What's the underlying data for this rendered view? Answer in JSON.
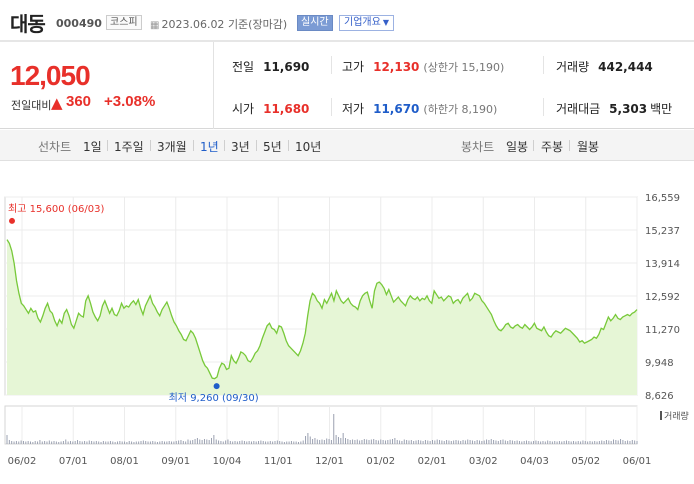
{
  "header": {
    "name": "대동",
    "code": "000490",
    "market": "코스피",
    "ref_date": "2023.06.02",
    "ref_label": "기준(장마감)",
    "realtime": "실시간",
    "company_info": "기업개요"
  },
  "quote": {
    "price": "12,050",
    "change_label": "전일대비",
    "change_arrow": "▲",
    "change_value": "360",
    "change_pct": "+3.08%",
    "prev_close_label": "전일",
    "prev_close": "11,690",
    "high_label": "고가",
    "high": "12,130",
    "upper_limit": "(상한가 15,190)",
    "volume_label": "거래량",
    "volume": "442,444",
    "open_label": "시가",
    "open": "11,680",
    "low_label": "저가",
    "low": "11,670",
    "lower_limit": "(하한가 8,190)",
    "amount_label": "거래대금",
    "amount": "5,303",
    "amount_unit": "백만"
  },
  "periods": {
    "line_title": "선차트",
    "line_items": [
      "1일",
      "1주일",
      "3개월",
      "1년",
      "3년",
      "5년",
      "10년"
    ],
    "active": "1년",
    "candle_title": "봉차트",
    "candle_items": [
      "일봉",
      "주봉",
      "월봉"
    ]
  },
  "colors": {
    "up": "#e8302a",
    "down": "#1f5dc9",
    "line": "#78c93a",
    "area": "#e6f6d6",
    "volume": "#9aa0b0"
  },
  "chart_data": {
    "type": "area",
    "y_ticks": [
      "16,559",
      "15,237",
      "13,914",
      "12,592",
      "11,270",
      "9,948",
      "8,626"
    ],
    "y_tick_values": [
      16559,
      15237,
      13914,
      12592,
      11270,
      9948,
      8626
    ],
    "ylim": [
      8626,
      16559
    ],
    "x_ticks": [
      "06/02",
      "07/01",
      "08/01",
      "09/01",
      "10/04",
      "11/01",
      "12/01",
      "01/02",
      "02/01",
      "03/02",
      "04/03",
      "05/02",
      "06/01"
    ],
    "high_annotation": "최고 15,600 (06/03)",
    "high_value": 15600,
    "low_annotation": "최저 9,260 (09/30)",
    "low_value": 9260,
    "volume_label": "거래량",
    "series": [
      {
        "values": [
          14850,
          14700,
          14400,
          13900,
          13200,
          12700,
          12300,
          12200,
          12050,
          11900,
          12100,
          11950,
          12000,
          11700,
          11550,
          11800,
          12100,
          12300,
          12000,
          11900,
          11600,
          11400,
          11650,
          11500,
          11900,
          12050,
          11800,
          11450,
          11300,
          11600,
          11900,
          11800,
          11750,
          12400,
          12600,
          12300,
          11950,
          11750,
          11600,
          11800,
          12200,
          12400,
          12150,
          11900,
          12100,
          11850,
          11800,
          12000,
          12300,
          12100,
          12200,
          12150,
          12300,
          12400,
          12250,
          12450,
          12100,
          11850,
          12200,
          12400,
          12600,
          12300,
          12150,
          11950,
          11800,
          12050,
          12200,
          12350,
          12100,
          11800,
          11550,
          11400,
          11200,
          11050,
          10850,
          10800,
          11000,
          11200,
          11100,
          10900,
          10600,
          10300,
          10000,
          9800,
          9700,
          9500,
          9300,
          9280,
          9350,
          9700,
          9900,
          9850,
          9650,
          9700,
          10200,
          10000,
          9900,
          10100,
          10350,
          10300,
          10200,
          10000,
          9950,
          10100,
          10300,
          10400,
          10600,
          10900,
          11150,
          11400,
          11500,
          11300,
          11250,
          11100,
          11400,
          11350,
          11100,
          10800,
          10600,
          10500,
          10400,
          10300,
          10200,
          10400,
          10700,
          11100,
          11800,
          12400,
          12700,
          12600,
          12400,
          12300,
          12100,
          12450,
          12300,
          12500,
          12700,
          12400,
          12800,
          12600,
          12400,
          12300,
          12400,
          12500,
          12300,
          12200,
          12150,
          12050,
          12400,
          12600,
          12700,
          12750,
          12400,
          12100,
          12800,
          13100,
          13150,
          13050,
          12900,
          12650,
          12850,
          12600,
          12350,
          12450,
          12550,
          12400,
          12300,
          12200,
          12450,
          12600,
          12500,
          12450,
          12550,
          12400,
          12500,
          12450,
          12600,
          12400,
          12300,
          12800,
          12650,
          12500,
          12550,
          12400,
          12500,
          12600,
          12550,
          12300,
          12400,
          12450,
          12300,
          12500,
          12600,
          12700,
          12400,
          12500,
          12700,
          12650,
          12600,
          12400,
          12300,
          12150,
          12000,
          11850,
          11600,
          11400,
          11250,
          11200,
          11300,
          11450,
          11500,
          11350,
          11300,
          11400,
          11450,
          11350,
          11300,
          11450,
          11350,
          11250,
          11350,
          11500,
          11300,
          11250,
          11200,
          11350,
          11150,
          11000,
          10950,
          11100,
          11200,
          11150,
          11100,
          11200,
          11300,
          11250,
          11200,
          11100,
          11000,
          10900,
          10750,
          10800,
          10700,
          10750,
          10800,
          10850,
          10950,
          10900,
          11050,
          11300,
          11250,
          11500,
          11750,
          11600,
          11700,
          11850,
          11700,
          11650,
          11750,
          11800,
          11850,
          11800,
          11900,
          11950,
          12050
        ]
      }
    ],
    "volume_values": [
      18,
      8,
      6,
      5,
      6,
      5,
      7,
      6,
      5,
      6,
      5,
      4,
      6,
      5,
      8,
      5,
      6,
      5,
      7,
      5,
      6,
      5,
      4,
      5,
      6,
      9,
      5,
      6,
      5,
      6,
      8,
      6,
      5,
      6,
      5,
      7,
      6,
      5,
      6,
      5,
      4,
      6,
      5,
      5,
      6,
      5,
      4,
      5,
      6,
      5,
      5,
      4,
      6,
      5,
      4,
      5,
      5,
      6,
      7,
      6,
      5,
      5,
      6,
      5,
      4,
      5,
      6,
      5,
      5,
      6,
      5,
      5,
      6,
      7,
      8,
      6,
      5,
      9,
      7,
      8,
      10,
      12,
      9,
      8,
      10,
      9,
      8,
      12,
      18,
      9,
      7,
      6,
      5,
      7,
      9,
      6,
      5,
      6,
      5,
      6,
      7,
      6,
      5,
      6,
      5,
      6,
      5,
      6,
      7,
      6,
      5,
      5,
      6,
      5,
      6,
      7,
      6,
      5,
      4,
      5,
      5,
      6,
      5,
      5,
      4,
      5,
      7,
      16,
      22,
      15,
      10,
      12,
      9,
      8,
      9,
      8,
      11,
      10,
      8,
      60,
      18,
      14,
      12,
      22,
      12,
      10,
      8,
      9,
      8,
      9,
      7,
      8,
      10,
      9,
      8,
      9,
      10,
      8,
      7,
      9,
      8,
      7,
      8,
      9,
      10,
      12,
      8,
      7,
      6,
      9,
      8,
      7,
      8,
      6,
      7,
      8,
      7,
      6,
      8,
      7,
      6,
      8,
      7,
      9,
      8,
      7,
      6,
      8,
      7,
      6,
      7,
      8,
      7,
      6,
      8,
      7,
      9,
      8,
      7,
      6,
      8,
      7,
      6,
      7,
      9,
      8,
      10,
      8,
      7,
      6,
      8,
      9,
      7,
      6,
      8,
      7,
      6,
      7,
      6,
      5,
      6,
      7,
      6,
      5,
      6,
      7,
      6,
      5,
      6,
      5,
      7,
      6,
      5,
      6,
      5,
      6,
      5,
      6,
      7,
      6,
      5,
      6,
      5,
      6,
      5,
      7,
      6,
      5,
      6,
      5,
      6,
      5,
      6,
      7,
      6,
      8,
      7,
      6,
      9,
      8,
      7,
      10,
      8,
      6,
      7,
      6,
      8,
      7,
      6
    ]
  }
}
